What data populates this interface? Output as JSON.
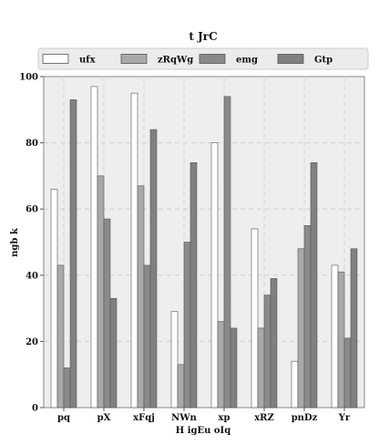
{
  "chart_data": {
    "type": "bar",
    "title": "t JrC",
    "xlabel": "H igEu oIq",
    "ylabel": "ngb k",
    "categories": [
      "pq",
      "pX",
      "xFqj",
      "NWn",
      "xp",
      "xRZ",
      "pnDz",
      "Yr"
    ],
    "ylim": [
      0,
      100
    ],
    "yticks": [
      0,
      20,
      40,
      60,
      80,
      100
    ],
    "grid": true,
    "legend_position": "top",
    "series": [
      {
        "name": "ufx",
        "color": "#ffffff",
        "values": [
          66,
          97,
          95,
          29,
          80,
          54,
          14,
          43
        ]
      },
      {
        "name": "zRqWg",
        "color": "#a9a9a9",
        "values": [
          43,
          70,
          67,
          13,
          26,
          24,
          48,
          41
        ]
      },
      {
        "name": "emg",
        "color": "#8a8a8a",
        "values": [
          12,
          57,
          43,
          50,
          94,
          34,
          55,
          21
        ]
      },
      {
        "name": "Gtp",
        "color": "#808080",
        "values": [
          93,
          33,
          84,
          74,
          24,
          39,
          74,
          48
        ]
      }
    ]
  }
}
